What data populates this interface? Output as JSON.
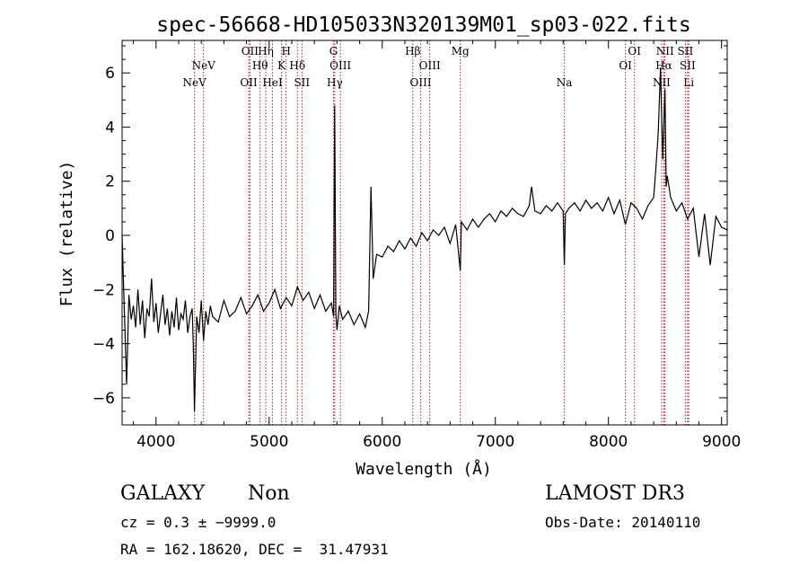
{
  "chart_data": {
    "type": "line",
    "title": "spec-56668-HD105033N320139M01_sp03-022.fits",
    "xlabel": "Wavelength (Å)",
    "ylabel": "Flux (relative)",
    "xlim": [
      3700,
      9050
    ],
    "ylim": [
      -7,
      7.2
    ],
    "x_ticks": [
      4000,
      5000,
      6000,
      7000,
      8000,
      9000
    ],
    "y_ticks": [
      -6,
      -4,
      -2,
      0,
      2,
      4,
      6
    ],
    "x_tick_labels": [
      "4000",
      "5000",
      "6000",
      "7000",
      "8000",
      "9000"
    ],
    "y_tick_labels": [
      "−6",
      "−4",
      "−2",
      "0",
      "2",
      "4",
      "6"
    ],
    "series": [
      {
        "name": "spectrum",
        "x": [
          3700,
          3720,
          3740,
          3760,
          3780,
          3800,
          3820,
          3840,
          3860,
          3880,
          3900,
          3920,
          3940,
          3960,
          3980,
          4000,
          4020,
          4040,
          4060,
          4080,
          4100,
          4120,
          4140,
          4160,
          4180,
          4200,
          4220,
          4240,
          4260,
          4280,
          4300,
          4320,
          4330,
          4340,
          4360,
          4380,
          4400,
          4420,
          4440,
          4460,
          4480,
          4500,
          4550,
          4600,
          4650,
          4700,
          4750,
          4800,
          4850,
          4900,
          4950,
          5000,
          5050,
          5100,
          5150,
          5200,
          5250,
          5300,
          5350,
          5400,
          5450,
          5500,
          5550,
          5570,
          5580,
          5590,
          5600,
          5620,
          5650,
          5700,
          5750,
          5800,
          5850,
          5880,
          5900,
          5920,
          5950,
          6000,
          6050,
          6100,
          6150,
          6200,
          6250,
          6300,
          6350,
          6400,
          6450,
          6500,
          6550,
          6600,
          6650,
          6690,
          6700,
          6750,
          6800,
          6850,
          6900,
          6950,
          7000,
          7050,
          7100,
          7150,
          7200,
          7250,
          7300,
          7320,
          7350,
          7400,
          7450,
          7500,
          7550,
          7600,
          7610,
          7620,
          7650,
          7700,
          7750,
          7800,
          7850,
          7900,
          7950,
          8000,
          8050,
          8100,
          8150,
          8200,
          8250,
          8300,
          8350,
          8400,
          8420,
          8440,
          8460,
          8480,
          8500,
          8510,
          8520,
          8550,
          8600,
          8650,
          8700,
          8750,
          8800,
          8850,
          8900,
          8950,
          9000,
          9050
        ],
        "y": [
          0.0,
          -2.8,
          -5.5,
          -2.2,
          -3.1,
          -2.6,
          -3.4,
          -2.0,
          -3.3,
          -2.4,
          -3.8,
          -2.7,
          -3.0,
          -1.6,
          -3.2,
          -2.5,
          -3.6,
          -2.9,
          -2.2,
          -3.3,
          -2.7,
          -3.7,
          -2.8,
          -3.4,
          -2.3,
          -3.5,
          -2.9,
          -3.1,
          -2.4,
          -3.6,
          -3.0,
          -2.7,
          -4.2,
          -6.5,
          -3.0,
          -3.6,
          -2.4,
          -3.9,
          -2.8,
          -3.3,
          -2.6,
          -3.0,
          -3.2,
          -2.4,
          -3.0,
          -2.8,
          -2.3,
          -2.9,
          -2.6,
          -2.2,
          -2.8,
          -2.5,
          -2.0,
          -2.7,
          -2.3,
          -2.6,
          -1.9,
          -2.4,
          -2.1,
          -2.7,
          -2.2,
          -2.8,
          -2.5,
          -3.0,
          4.8,
          -2.9,
          -3.5,
          -2.6,
          -3.1,
          -2.8,
          -3.3,
          -2.9,
          -3.4,
          -2.8,
          1.8,
          -1.6,
          -0.7,
          -0.8,
          -0.4,
          -0.6,
          -0.2,
          -0.5,
          -0.1,
          -0.4,
          0.1,
          -0.2,
          0.2,
          0.0,
          0.3,
          -0.3,
          0.4,
          -1.3,
          0.5,
          0.2,
          0.6,
          0.3,
          0.6,
          0.8,
          0.5,
          0.9,
          0.7,
          1.0,
          0.8,
          0.7,
          1.1,
          1.8,
          0.9,
          0.8,
          1.1,
          0.9,
          1.2,
          0.9,
          -1.1,
          0.8,
          1.0,
          1.2,
          0.9,
          1.3,
          1.0,
          1.2,
          0.9,
          1.4,
          0.8,
          1.3,
          0.4,
          1.2,
          1.0,
          0.6,
          1.1,
          1.4,
          2.5,
          3.8,
          6.2,
          2.8,
          5.4,
          1.8,
          2.2,
          1.4,
          0.9,
          1.2,
          0.6,
          1.0,
          -0.8,
          0.8,
          -1.1,
          0.7,
          0.3,
          0.2
        ]
      }
    ],
    "lines": [
      {
        "name": "NeV",
        "wave": 4340,
        "row": 2
      },
      {
        "name": "NeV",
        "wave": 4420,
        "row": 1
      },
      {
        "name": "OII",
        "wave": 4820,
        "row": 2
      },
      {
        "name": "OII",
        "wave": 4830,
        "row": 0
      },
      {
        "name": "Hθ",
        "wave": 4920,
        "row": 1
      },
      {
        "name": "Hη",
        "wave": 4970,
        "row": 0
      },
      {
        "name": "HeI",
        "wave": 5030,
        "row": 2
      },
      {
        "name": "K",
        "wave": 5110,
        "row": 1
      },
      {
        "name": "H",
        "wave": 5150,
        "row": 0
      },
      {
        "name": "Hδ",
        "wave": 5250,
        "row": 1
      },
      {
        "name": "SII",
        "wave": 5290,
        "row": 2
      },
      {
        "name": "G",
        "wave": 5570,
        "row": 0
      },
      {
        "name": "Hγ",
        "wave": 5580,
        "row": 2
      },
      {
        "name": "OIII",
        "wave": 5630,
        "row": 1
      },
      {
        "name": "Hβ",
        "wave": 6270,
        "row": 0
      },
      {
        "name": "OIII",
        "wave": 6340,
        "row": 2
      },
      {
        "name": "OIII",
        "wave": 6420,
        "row": 1
      },
      {
        "name": "Mg",
        "wave": 6690,
        "row": 0
      },
      {
        "name": "Na",
        "wave": 7610,
        "row": 2
      },
      {
        "name": "OI",
        "wave": 8150,
        "row": 1
      },
      {
        "name": "OI",
        "wave": 8230,
        "row": 0
      },
      {
        "name": "NII",
        "wave": 8470,
        "row": 2
      },
      {
        "name": "Hα",
        "wave": 8490,
        "row": 1
      },
      {
        "name": "NII",
        "wave": 8500,
        "row": 0
      },
      {
        "name": "SII",
        "wave": 8680,
        "row": 0
      },
      {
        "name": "SII",
        "wave": 8700,
        "row": 1
      },
      {
        "name": "Li",
        "wave": 8710,
        "row": 2
      }
    ]
  },
  "info": {
    "class_label": "GALAXY",
    "subclass_label": "Non",
    "survey": "LAMOST DR3",
    "cz": "cz = 0.3 ± −9999.0",
    "obs_date": "Obs-Date: 20140110",
    "coords": "RA = 162.18620, DEC =  31.47931"
  },
  "colors": {
    "spectrum": "#000000",
    "line_marker": "#b22222",
    "axis": "#000000"
  }
}
